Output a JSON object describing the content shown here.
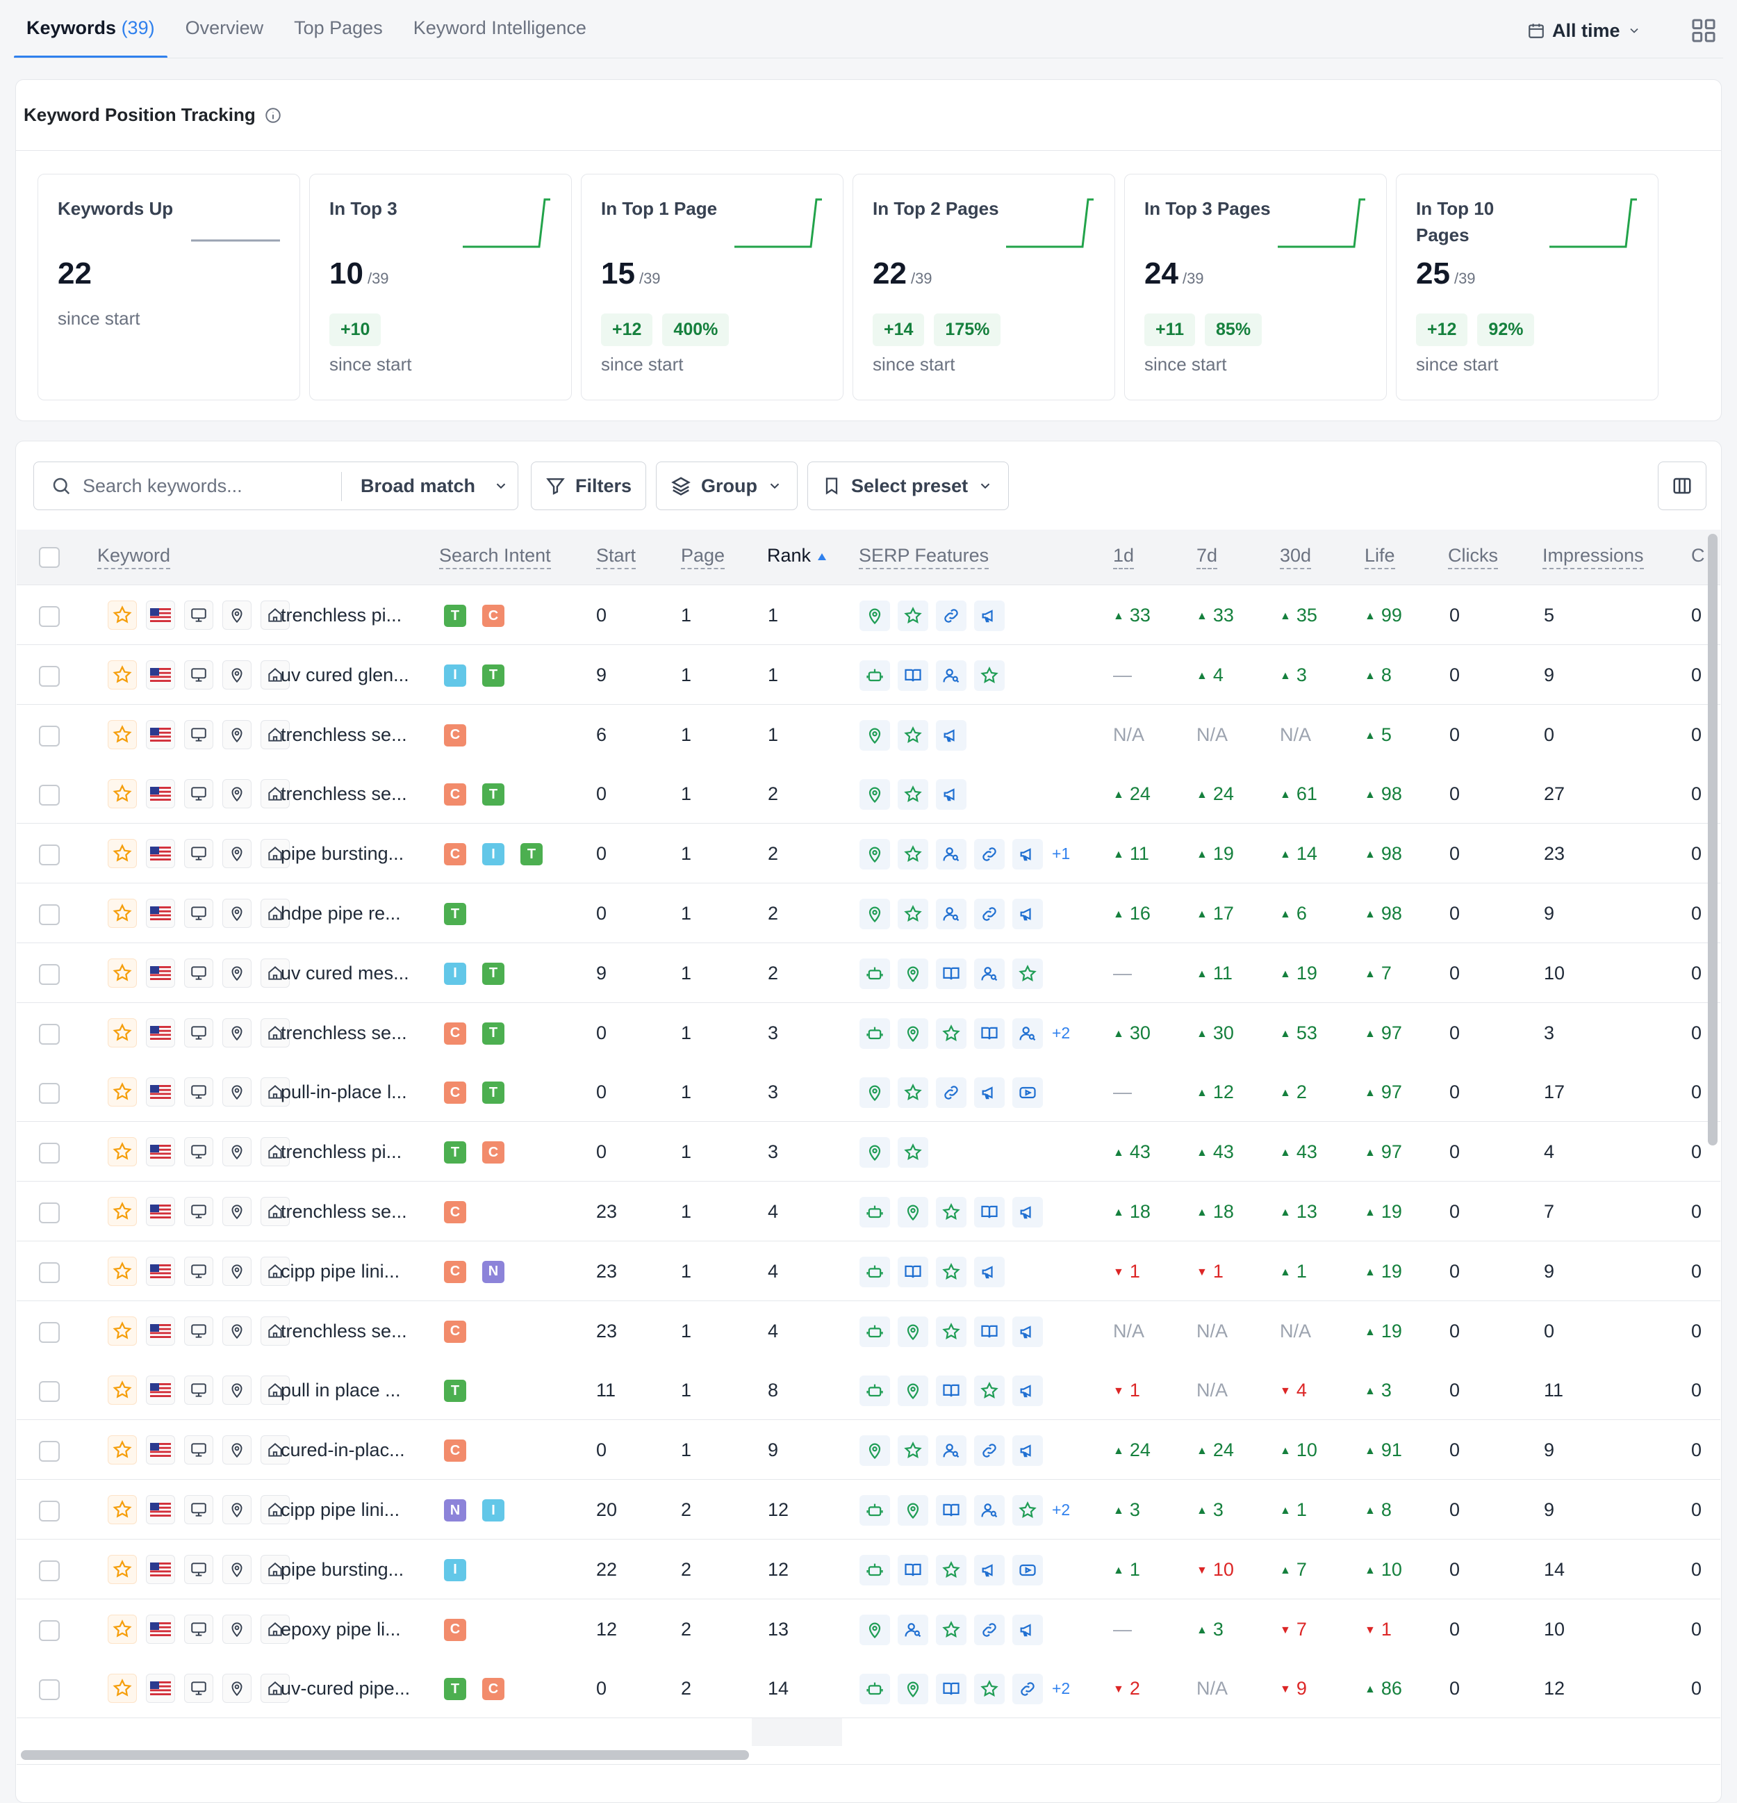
{
  "tabs": [
    {
      "label": "Keywords",
      "count": "(39)"
    },
    {
      "label": "Overview"
    },
    {
      "label": "Top Pages"
    },
    {
      "label": "Keyword Intelligence"
    }
  ],
  "date_range": "All time",
  "tracking": {
    "title": "Keyword Position Tracking",
    "cards": [
      {
        "label": "Keywords Up",
        "value": "22",
        "denom": "",
        "chips": [],
        "since": "since start"
      },
      {
        "label": "In Top 3",
        "value": "10",
        "denom": "/39",
        "chips": [
          "+10"
        ],
        "since": "since start"
      },
      {
        "label": "In Top 1 Page",
        "value": "15",
        "denom": "/39",
        "chips": [
          "+12",
          "400%"
        ],
        "since": "since start"
      },
      {
        "label": "In Top 2 Pages",
        "value": "22",
        "denom": "/39",
        "chips": [
          "+14",
          "175%"
        ],
        "since": "since start"
      },
      {
        "label": "In Top 3 Pages",
        "value": "24",
        "denom": "/39",
        "chips": [
          "+11",
          "85%"
        ],
        "since": "since start"
      },
      {
        "label": "In Top 10 Pages",
        "value": "25",
        "denom": "/39",
        "chips": [
          "+12",
          "92%"
        ],
        "since": "since start"
      }
    ]
  },
  "toolbar": {
    "search_placeholder": "Search keywords...",
    "match": "Broad match",
    "filters": "Filters",
    "group": "Group",
    "preset": "Select preset"
  },
  "columns": [
    "Keyword",
    "Search Intent",
    "Start",
    "Page",
    "Rank",
    "SERP Features",
    "1d",
    "7d",
    "30d",
    "Life",
    "Clicks",
    "Impressions",
    "C"
  ],
  "colors": {
    "accent": "#2f80ed",
    "up": "#15803d",
    "down": "#dc2626",
    "intent_T": "#4caf50",
    "intent_C": "#f28b6b",
    "intent_I": "#62c7e8",
    "intent_N": "#8c83d9"
  },
  "rows": [
    {
      "kw": "trenchless pi...",
      "intent": [
        "T",
        "C"
      ],
      "start": "0",
      "page": "1",
      "rank": "1",
      "serp": [
        "loc",
        "star",
        "link",
        "mega"
      ],
      "more": "",
      "d1": [
        "up",
        "33"
      ],
      "d7": [
        "up",
        "33"
      ],
      "d30": [
        "up",
        "35"
      ],
      "life": [
        "up",
        "99"
      ],
      "clicks": "0",
      "impr": "5",
      "c": "0"
    },
    {
      "kw": "uv cured glen...",
      "intent": [
        "I",
        "T"
      ],
      "start": "9",
      "page": "1",
      "rank": "1",
      "serp": [
        "bot",
        "book",
        "user",
        "star"
      ],
      "more": "",
      "d1": [
        "na",
        "—"
      ],
      "d7": [
        "up",
        "4"
      ],
      "d30": [
        "up",
        "3"
      ],
      "life": [
        "up",
        "8"
      ],
      "clicks": "0",
      "impr": "9",
      "c": "0"
    },
    {
      "kw": "trenchless se...",
      "intent": [
        "C"
      ],
      "start": "6",
      "page": "1",
      "rank": "1",
      "serp": [
        "loc",
        "star",
        "mega"
      ],
      "more": "",
      "d1": [
        "na",
        "N/A"
      ],
      "d7": [
        "na",
        "N/A"
      ],
      "d30": [
        "na",
        "N/A"
      ],
      "life": [
        "up",
        "5"
      ],
      "clicks": "0",
      "impr": "0",
      "c": "0"
    },
    {
      "kw": "trenchless se...",
      "intent": [
        "C",
        "T"
      ],
      "start": "0",
      "page": "1",
      "rank": "2",
      "serp": [
        "loc",
        "star",
        "mega"
      ],
      "more": "",
      "d1": [
        "up",
        "24"
      ],
      "d7": [
        "up",
        "24"
      ],
      "d30": [
        "up",
        "61"
      ],
      "life": [
        "up",
        "98"
      ],
      "clicks": "0",
      "impr": "27",
      "c": "0"
    },
    {
      "kw": "pipe bursting...",
      "intent": [
        "C",
        "I",
        "T"
      ],
      "start": "0",
      "page": "1",
      "rank": "2",
      "serp": [
        "loc",
        "star",
        "user",
        "link",
        "mega"
      ],
      "more": "+1",
      "d1": [
        "up",
        "11"
      ],
      "d7": [
        "up",
        "19"
      ],
      "d30": [
        "up",
        "14"
      ],
      "life": [
        "up",
        "98"
      ],
      "clicks": "0",
      "impr": "23",
      "c": "0"
    },
    {
      "kw": "hdpe pipe re...",
      "intent": [
        "T"
      ],
      "start": "0",
      "page": "1",
      "rank": "2",
      "serp": [
        "loc",
        "star",
        "user",
        "link",
        "mega"
      ],
      "more": "",
      "d1": [
        "up",
        "16"
      ],
      "d7": [
        "up",
        "17"
      ],
      "d30": [
        "up",
        "6"
      ],
      "life": [
        "up",
        "98"
      ],
      "clicks": "0",
      "impr": "9",
      "c": "0"
    },
    {
      "kw": "uv cured mes...",
      "intent": [
        "I",
        "T"
      ],
      "start": "9",
      "page": "1",
      "rank": "2",
      "serp": [
        "bot",
        "loc",
        "book",
        "user",
        "star"
      ],
      "more": "",
      "d1": [
        "na",
        "—"
      ],
      "d7": [
        "up",
        "11"
      ],
      "d30": [
        "up",
        "19"
      ],
      "life": [
        "up",
        "7"
      ],
      "clicks": "0",
      "impr": "10",
      "c": "0"
    },
    {
      "kw": "trenchless se...",
      "intent": [
        "C",
        "T"
      ],
      "start": "0",
      "page": "1",
      "rank": "3",
      "serp": [
        "bot",
        "loc",
        "star",
        "book",
        "user"
      ],
      "more": "+2",
      "d1": [
        "up",
        "30"
      ],
      "d7": [
        "up",
        "30"
      ],
      "d30": [
        "up",
        "53"
      ],
      "life": [
        "up",
        "97"
      ],
      "clicks": "0",
      "impr": "3",
      "c": "0"
    },
    {
      "kw": "pull-in-place l...",
      "intent": [
        "C",
        "T"
      ],
      "start": "0",
      "page": "1",
      "rank": "3",
      "serp": [
        "loc",
        "star",
        "link",
        "mega",
        "video"
      ],
      "more": "",
      "d1": [
        "na",
        "—"
      ],
      "d7": [
        "up",
        "12"
      ],
      "d30": [
        "up",
        "2"
      ],
      "life": [
        "up",
        "97"
      ],
      "clicks": "0",
      "impr": "17",
      "c": "0"
    },
    {
      "kw": "trenchless pi...",
      "intent": [
        "T",
        "C"
      ],
      "start": "0",
      "page": "1",
      "rank": "3",
      "serp": [
        "loc",
        "star"
      ],
      "more": "",
      "d1": [
        "up",
        "43"
      ],
      "d7": [
        "up",
        "43"
      ],
      "d30": [
        "up",
        "43"
      ],
      "life": [
        "up",
        "97"
      ],
      "clicks": "0",
      "impr": "4",
      "c": "0"
    },
    {
      "kw": "trenchless se...",
      "intent": [
        "C"
      ],
      "start": "23",
      "page": "1",
      "rank": "4",
      "serp": [
        "bot",
        "loc",
        "star",
        "book",
        "mega"
      ],
      "more": "",
      "d1": [
        "up",
        "18"
      ],
      "d7": [
        "up",
        "18"
      ],
      "d30": [
        "up",
        "13"
      ],
      "life": [
        "up",
        "19"
      ],
      "clicks": "0",
      "impr": "7",
      "c": "0"
    },
    {
      "kw": "cipp pipe lini...",
      "intent": [
        "C",
        "N"
      ],
      "start": "23",
      "page": "1",
      "rank": "4",
      "serp": [
        "bot",
        "book",
        "star",
        "mega"
      ],
      "more": "",
      "d1": [
        "dn",
        "1"
      ],
      "d7": [
        "dn",
        "1"
      ],
      "d30": [
        "up",
        "1"
      ],
      "life": [
        "up",
        "19"
      ],
      "clicks": "0",
      "impr": "9",
      "c": "0"
    },
    {
      "kw": "trenchless se...",
      "intent": [
        "C"
      ],
      "start": "23",
      "page": "1",
      "rank": "4",
      "serp": [
        "bot",
        "loc",
        "star",
        "book",
        "mega"
      ],
      "more": "",
      "d1": [
        "na",
        "N/A"
      ],
      "d7": [
        "na",
        "N/A"
      ],
      "d30": [
        "na",
        "N/A"
      ],
      "life": [
        "up",
        "19"
      ],
      "clicks": "0",
      "impr": "0",
      "c": "0"
    },
    {
      "kw": "pull in place ...",
      "intent": [
        "T"
      ],
      "start": "11",
      "page": "1",
      "rank": "8",
      "serp": [
        "bot",
        "loc",
        "book",
        "star",
        "mega"
      ],
      "more": "",
      "d1": [
        "dn",
        "1"
      ],
      "d7": [
        "na",
        "N/A"
      ],
      "d30": [
        "dn",
        "4"
      ],
      "life": [
        "up",
        "3"
      ],
      "clicks": "0",
      "impr": "11",
      "c": "0"
    },
    {
      "kw": "cured-in-plac...",
      "intent": [
        "C"
      ],
      "start": "0",
      "page": "1",
      "rank": "9",
      "serp": [
        "loc",
        "star",
        "user",
        "link",
        "mega"
      ],
      "more": "",
      "d1": [
        "up",
        "24"
      ],
      "d7": [
        "up",
        "24"
      ],
      "d30": [
        "up",
        "10"
      ],
      "life": [
        "up",
        "91"
      ],
      "clicks": "0",
      "impr": "9",
      "c": "0"
    },
    {
      "kw": "cipp pipe lini...",
      "intent": [
        "N",
        "I"
      ],
      "start": "20",
      "page": "2",
      "rank": "12",
      "serp": [
        "bot",
        "loc",
        "book",
        "user",
        "star"
      ],
      "more": "+2",
      "d1": [
        "up",
        "3"
      ],
      "d7": [
        "up",
        "3"
      ],
      "d30": [
        "up",
        "1"
      ],
      "life": [
        "up",
        "8"
      ],
      "clicks": "0",
      "impr": "9",
      "c": "0"
    },
    {
      "kw": "pipe bursting...",
      "intent": [
        "I"
      ],
      "start": "22",
      "page": "2",
      "rank": "12",
      "serp": [
        "bot",
        "book",
        "star",
        "mega",
        "video"
      ],
      "more": "",
      "d1": [
        "up",
        "1"
      ],
      "d7": [
        "dn",
        "10"
      ],
      "d30": [
        "up",
        "7"
      ],
      "life": [
        "up",
        "10"
      ],
      "clicks": "0",
      "impr": "14",
      "c": "0"
    },
    {
      "kw": "epoxy pipe li...",
      "intent": [
        "C"
      ],
      "start": "12",
      "page": "2",
      "rank": "13",
      "serp": [
        "loc",
        "user",
        "star",
        "link",
        "mega"
      ],
      "more": "",
      "d1": [
        "na",
        "—"
      ],
      "d7": [
        "up",
        "3"
      ],
      "d30": [
        "dn",
        "7"
      ],
      "life": [
        "dn",
        "1"
      ],
      "clicks": "0",
      "impr": "10",
      "c": "0"
    },
    {
      "kw": "uv-cured pipe...",
      "intent": [
        "T",
        "C"
      ],
      "start": "0",
      "page": "2",
      "rank": "14",
      "serp": [
        "bot",
        "loc",
        "book",
        "star",
        "link"
      ],
      "more": "+2",
      "d1": [
        "dn",
        "2"
      ],
      "d7": [
        "na",
        "N/A"
      ],
      "d30": [
        "dn",
        "9"
      ],
      "life": [
        "up",
        "86"
      ],
      "clicks": "0",
      "impr": "12",
      "c": "0"
    }
  ]
}
